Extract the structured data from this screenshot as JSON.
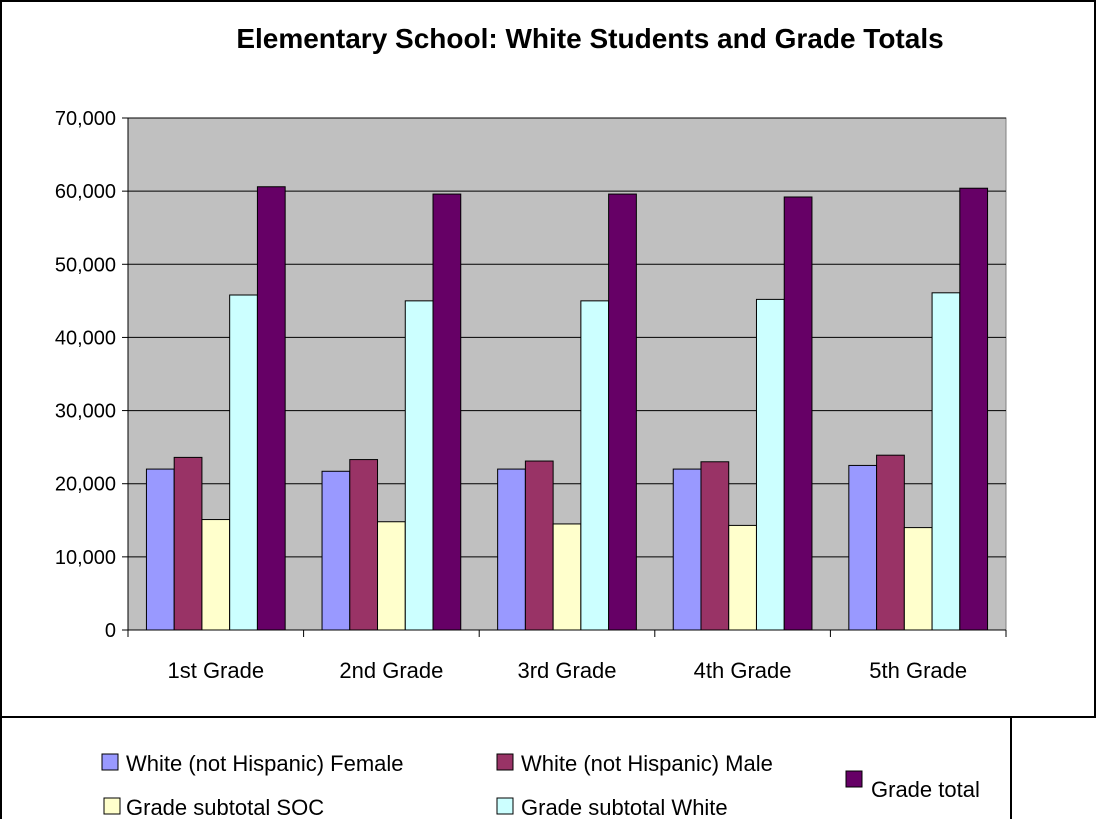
{
  "chart_data": {
    "type": "bar",
    "title": "Elementary School: White Students and Grade Totals",
    "xlabel": "",
    "ylabel": "",
    "categories": [
      "1st Grade",
      "2nd Grade",
      "3rd Grade",
      "4th Grade",
      "5th Grade"
    ],
    "ylim": [
      0,
      70000
    ],
    "y_ticks": [
      {
        "value": 0,
        "label": "0"
      },
      {
        "value": 10000,
        "label": "10,000"
      },
      {
        "value": 20000,
        "label": "20,000"
      },
      {
        "value": 30000,
        "label": "30,000"
      },
      {
        "value": 40000,
        "label": "40,000"
      },
      {
        "value": 50000,
        "label": "50,000"
      },
      {
        "value": 60000,
        "label": "60,000"
      },
      {
        "value": 70000,
        "label": "70,000"
      }
    ],
    "grid": true,
    "legend_position": "bottom",
    "plot_background": "#c0c0c0",
    "series": [
      {
        "name": "White (not Hispanic) Female",
        "color": "#9999ff",
        "values": [
          22000,
          21700,
          22000,
          22000,
          22500
        ]
      },
      {
        "name": "White (not Hispanic) Male",
        "color": "#993366",
        "values": [
          23600,
          23300,
          23100,
          23000,
          23900
        ]
      },
      {
        "name": "Grade subtotal SOC",
        "color": "#ffffcc",
        "values": [
          15100,
          14800,
          14500,
          14300,
          14000
        ]
      },
      {
        "name": "Grade subtotal White",
        "color": "#ccffff",
        "values": [
          45800,
          45000,
          45000,
          45200,
          46100
        ]
      },
      {
        "name": "Grade total",
        "color": "#660066",
        "values": [
          60600,
          59600,
          59600,
          59200,
          60400
        ]
      }
    ]
  }
}
